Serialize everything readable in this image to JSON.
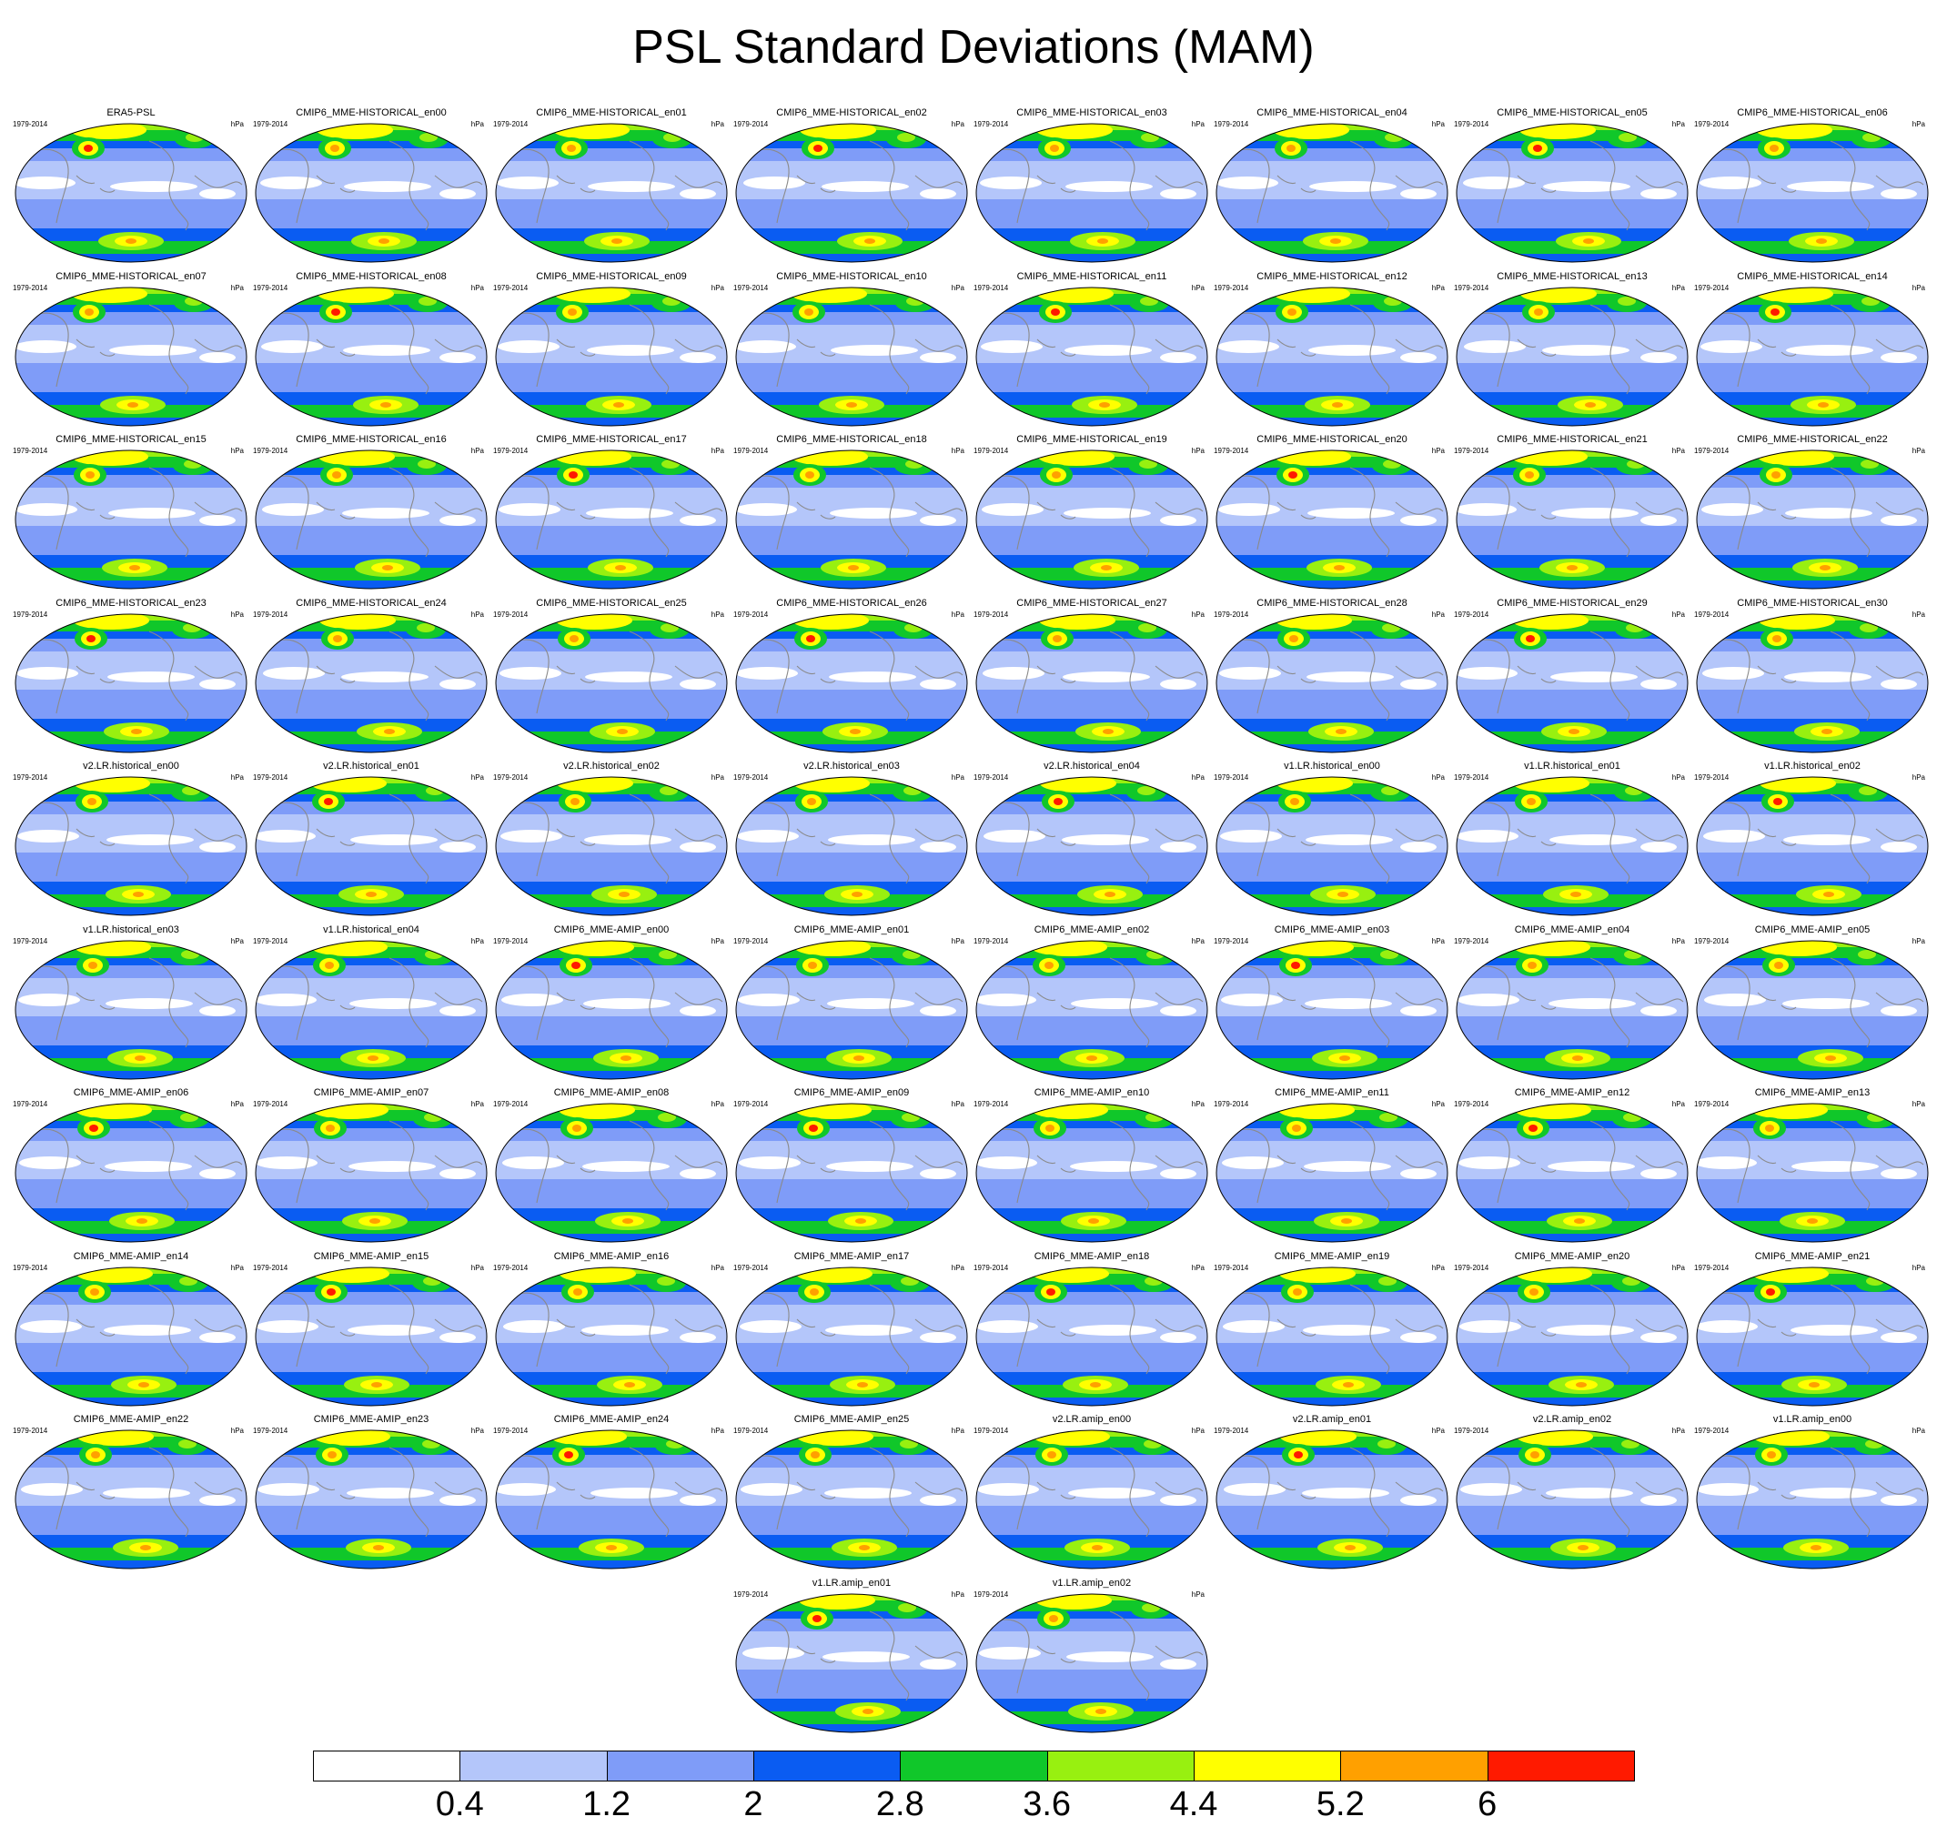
{
  "title": "PSL Standard Deviations (MAM)",
  "panel_years": "1979-2014",
  "panel_units": "hPa",
  "panels": [
    "ERA5-PSL",
    "CMIP6_MME-HISTORICAL_en00",
    "CMIP6_MME-HISTORICAL_en01",
    "CMIP6_MME-HISTORICAL_en02",
    "CMIP6_MME-HISTORICAL_en03",
    "CMIP6_MME-HISTORICAL_en04",
    "CMIP6_MME-HISTORICAL_en05",
    "CMIP6_MME-HISTORICAL_en06",
    "CMIP6_MME-HISTORICAL_en07",
    "CMIP6_MME-HISTORICAL_en08",
    "CMIP6_MME-HISTORICAL_en09",
    "CMIP6_MME-HISTORICAL_en10",
    "CMIP6_MME-HISTORICAL_en11",
    "CMIP6_MME-HISTORICAL_en12",
    "CMIP6_MME-HISTORICAL_en13",
    "CMIP6_MME-HISTORICAL_en14",
    "CMIP6_MME-HISTORICAL_en15",
    "CMIP6_MME-HISTORICAL_en16",
    "CMIP6_MME-HISTORICAL_en17",
    "CMIP6_MME-HISTORICAL_en18",
    "CMIP6_MME-HISTORICAL_en19",
    "CMIP6_MME-HISTORICAL_en20",
    "CMIP6_MME-HISTORICAL_en21",
    "CMIP6_MME-HISTORICAL_en22",
    "CMIP6_MME-HISTORICAL_en23",
    "CMIP6_MME-HISTORICAL_en24",
    "CMIP6_MME-HISTORICAL_en25",
    "CMIP6_MME-HISTORICAL_en26",
    "CMIP6_MME-HISTORICAL_en27",
    "CMIP6_MME-HISTORICAL_en28",
    "CMIP6_MME-HISTORICAL_en29",
    "CMIP6_MME-HISTORICAL_en30",
    "v2.LR.historical_en00",
    "v2.LR.historical_en01",
    "v2.LR.historical_en02",
    "v2.LR.historical_en03",
    "v2.LR.historical_en04",
    "v1.LR.historical_en00",
    "v1.LR.historical_en01",
    "v1.LR.historical_en02",
    "v1.LR.historical_en03",
    "v1.LR.historical_en04",
    "CMIP6_MME-AMIP_en00",
    "CMIP6_MME-AMIP_en01",
    "CMIP6_MME-AMIP_en02",
    "CMIP6_MME-AMIP_en03",
    "CMIP6_MME-AMIP_en04",
    "CMIP6_MME-AMIP_en05",
    "CMIP6_MME-AMIP_en06",
    "CMIP6_MME-AMIP_en07",
    "CMIP6_MME-AMIP_en08",
    "CMIP6_MME-AMIP_en09",
    "CMIP6_MME-AMIP_en10",
    "CMIP6_MME-AMIP_en11",
    "CMIP6_MME-AMIP_en12",
    "CMIP6_MME-AMIP_en13",
    "CMIP6_MME-AMIP_en14",
    "CMIP6_MME-AMIP_en15",
    "CMIP6_MME-AMIP_en16",
    "CMIP6_MME-AMIP_en17",
    "CMIP6_MME-AMIP_en18",
    "CMIP6_MME-AMIP_en19",
    "CMIP6_MME-AMIP_en20",
    "CMIP6_MME-AMIP_en21",
    "CMIP6_MME-AMIP_en22",
    "CMIP6_MME-AMIP_en23",
    "CMIP6_MME-AMIP_en24",
    "CMIP6_MME-AMIP_en25",
    "v2.LR.amip_en00",
    "v2.LR.amip_en01",
    "v2.LR.amip_en02",
    "v1.LR.amip_en00",
    "v1.LR.amip_en01",
    "v1.LR.amip_en02"
  ],
  "colorbar": {
    "colors": [
      "#ffffff",
      "#b4c6fa",
      "#7f9cf8",
      "#0a5cf2",
      "#10c72a",
      "#98f010",
      "#ffff00",
      "#ffa000",
      "#ff1a00"
    ],
    "labels": [
      "0.4",
      "1.2",
      "2",
      "2.8",
      "3.6",
      "4.4",
      "5.2",
      "6"
    ]
  }
}
